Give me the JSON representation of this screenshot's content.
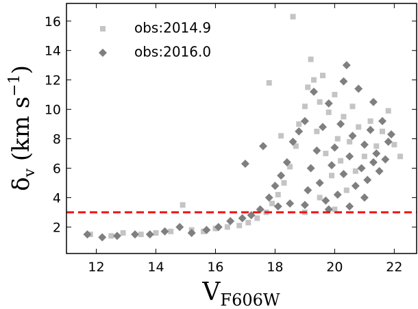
{
  "chart_data": {
    "type": "scatter",
    "x_label": {
      "main": "V",
      "sub": "F606W"
    },
    "y_label": {
      "main": "δ",
      "sub": "v",
      "unit": " (km s",
      "sup": "−1",
      "close": ")"
    },
    "xlim": [
      11,
      22.75
    ],
    "ylim": [
      0.2,
      17.2
    ],
    "xticks": [
      12,
      14,
      16,
      18,
      20,
      22
    ],
    "yticks": [
      2,
      4,
      6,
      8,
      10,
      12,
      14,
      16
    ],
    "legend": "upper left",
    "reference_line": {
      "value": 3,
      "color": "#ee1111",
      "style": "dashed"
    },
    "series": [
      {
        "name": "obs:2014.9",
        "color": "#c4c4c4",
        "marker": "square",
        "x": [
          11.8,
          12.5,
          12.9,
          13.5,
          14.0,
          14.5,
          14.9,
          15.2,
          15.6,
          16.0,
          16.4,
          16.8,
          17.1,
          17.4,
          17.7,
          17.9,
          18.1,
          18.3,
          18.5,
          18.6,
          18.7,
          18.8,
          19.0,
          19.1,
          19.2,
          19.3,
          19.4,
          19.5,
          19.6,
          19.7,
          19.8,
          19.9,
          20.0,
          20.1,
          20.2,
          20.3,
          20.4,
          20.5,
          20.6,
          20.7,
          20.8,
          21.0,
          21.2,
          21.4,
          21.6,
          21.8,
          22.0,
          22.2,
          17.8,
          18.2,
          19.0,
          19.5,
          20.0
        ],
        "values": [
          1.5,
          1.4,
          1.6,
          1.5,
          1.6,
          1.7,
          3.5,
          1.8,
          1.7,
          1.9,
          2.0,
          2.1,
          2.3,
          2.6,
          3.0,
          3.6,
          4.2,
          5.0,
          6.1,
          16.3,
          7.5,
          9.0,
          10.2,
          11.5,
          13.4,
          12.0,
          8.5,
          10.5,
          12.3,
          7.0,
          9.8,
          5.5,
          11.0,
          8.0,
          6.5,
          9.5,
          4.5,
          7.8,
          10.2,
          5.8,
          8.8,
          6.8,
          9.2,
          7.5,
          8.5,
          9.9,
          7.6,
          6.8,
          11.8,
          8.2,
          3.0,
          4.0,
          3.2
        ]
      },
      {
        "name": "obs:2016.0",
        "color": "#7f7f7f",
        "marker": "diamond",
        "x": [
          11.7,
          12.2,
          12.7,
          13.3,
          13.8,
          14.3,
          14.8,
          15.2,
          15.7,
          16.1,
          16.5,
          16.9,
          17.2,
          17.5,
          17.8,
          18.0,
          18.2,
          18.4,
          18.6,
          18.8,
          19.0,
          19.1,
          19.2,
          19.3,
          19.4,
          19.5,
          19.6,
          19.7,
          19.8,
          19.9,
          20.0,
          20.1,
          20.2,
          20.3,
          20.4,
          20.5,
          20.6,
          20.7,
          20.8,
          20.9,
          21.0,
          21.1,
          21.2,
          21.3,
          21.4,
          21.5,
          21.6,
          21.7,
          21.8,
          21.9,
          18.1,
          18.5,
          19.0,
          19.8,
          20.5,
          21.0,
          17.0,
          17.6,
          20.3,
          21.3
        ],
        "values": [
          1.5,
          1.3,
          1.4,
          1.5,
          1.5,
          1.7,
          2.0,
          1.6,
          1.8,
          2.0,
          2.4,
          2.6,
          2.8,
          3.2,
          4.0,
          4.8,
          5.5,
          6.4,
          7.8,
          8.5,
          9.2,
          4.5,
          6.0,
          11.2,
          7.2,
          5.0,
          8.8,
          3.8,
          10.4,
          6.2,
          7.4,
          4.2,
          9.0,
          5.6,
          13.0,
          6.8,
          8.2,
          4.8,
          11.4,
          6.0,
          7.6,
          5.2,
          8.6,
          6.4,
          7.0,
          5.8,
          9.2,
          6.6,
          7.8,
          8.3,
          3.4,
          3.6,
          3.5,
          3.2,
          3.4,
          4.0,
          6.3,
          7.5,
          11.9,
          10.5
        ]
      }
    ]
  }
}
